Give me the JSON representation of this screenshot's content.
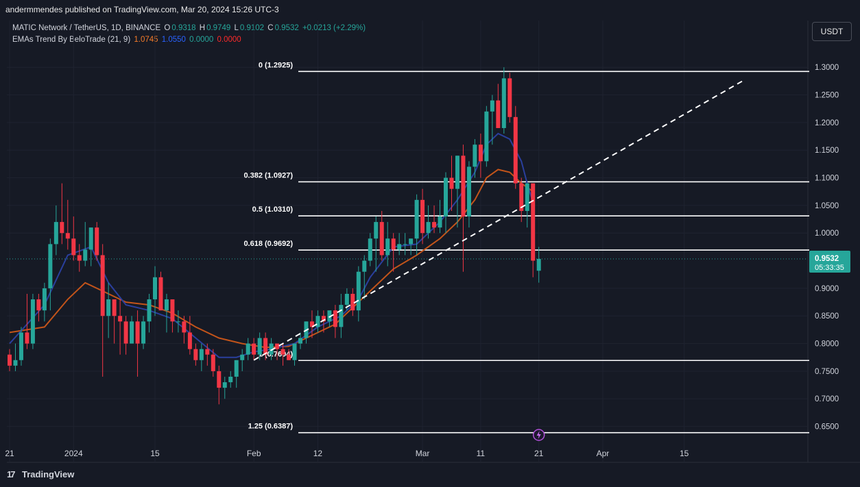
{
  "header": {
    "publish_line": "andermmendes published on TradingView.com, Mar 20, 2024 15:26 UTC-3"
  },
  "legend": {
    "symbol": "MATIC Network / TetherUS, 1D, BINANCE",
    "o_label": "O",
    "o_value": "0.9318",
    "h_label": "H",
    "h_value": "0.9749",
    "l_label": "L",
    "l_value": "0.9102",
    "c_label": "C",
    "c_value": "0.9532",
    "change": "+0.0213 (+2.29%)",
    "indicator": "EMAs Trend By BeloTrade (21, 9)",
    "ind_v1": "1.0745",
    "ind_v2": "1.0550",
    "ind_v3": "0.0000",
    "ind_v4": "0.0000"
  },
  "currency_button": "USDT",
  "price_badge": {
    "price": "0.9532",
    "countdown": "05:33:35"
  },
  "brand": {
    "logo": "17",
    "name": "TradingView"
  },
  "colors": {
    "bull": "#26a69a",
    "bear": "#f23645",
    "ema_fast": "#2a3f9d",
    "ema_slow": "#c3541a",
    "fib_line": "#ffffff",
    "background": "#161a25"
  },
  "chart_data": {
    "type": "candlestick",
    "ylim": [
      0.616,
      1.335
    ],
    "y_ticks": [
      1.3,
      1.25,
      1.2,
      1.15,
      1.1,
      1.05,
      1.0,
      0.9,
      0.85,
      0.8,
      0.75,
      0.7,
      0.65
    ],
    "y_tick_labels": [
      "1.3000",
      "1.2500",
      "1.2000",
      "1.1500",
      "1.1000",
      "1.0500",
      "1.0000",
      "0.9000",
      "0.8500",
      "0.8000",
      "0.7500",
      "0.7000",
      "0.6500"
    ],
    "x_ticks": [
      {
        "label": "21",
        "day": 0
      },
      {
        "label": "2024",
        "day": 11
      },
      {
        "label": "15",
        "day": 25
      },
      {
        "label": "Feb",
        "day": 42
      },
      {
        "label": "12",
        "day": 53
      },
      {
        "label": "Mar",
        "day": 71
      },
      {
        "label": "11",
        "day": 81
      },
      {
        "label": "21",
        "day": 91
      },
      {
        "label": "Apr",
        "day": 102
      },
      {
        "label": "15",
        "day": 116
      }
    ],
    "candles": [
      [
        0.78,
        0.79,
        0.75,
        0.76
      ],
      [
        0.76,
        0.8,
        0.75,
        0.77
      ],
      [
        0.77,
        0.83,
        0.76,
        0.82
      ],
      [
        0.82,
        0.89,
        0.79,
        0.8
      ],
      [
        0.8,
        0.89,
        0.79,
        0.88
      ],
      [
        0.88,
        0.89,
        0.84,
        0.86
      ],
      [
        0.86,
        0.91,
        0.84,
        0.9
      ],
      [
        0.9,
        0.99,
        0.86,
        0.98
      ],
      [
        0.98,
        1.05,
        0.96,
        1.02
      ],
      [
        1.02,
        1.09,
        0.98,
        1.0
      ],
      [
        1.0,
        1.06,
        0.97,
        0.99
      ],
      [
        0.99,
        1.03,
        0.95,
        0.96
      ],
      [
        0.96,
        0.98,
        0.93,
        0.95
      ],
      [
        0.95,
        1.02,
        0.94,
        0.97
      ],
      [
        0.97,
        1.01,
        0.94,
        1.01
      ],
      [
        1.01,
        1.02,
        0.95,
        0.96
      ],
      [
        0.96,
        0.98,
        0.74,
        0.85
      ],
      [
        0.85,
        0.91,
        0.81,
        0.88
      ],
      [
        0.88,
        0.88,
        0.8,
        0.85
      ],
      [
        0.85,
        0.88,
        0.78,
        0.84
      ],
      [
        0.84,
        0.85,
        0.78,
        0.8
      ],
      [
        0.8,
        0.85,
        0.8,
        0.84
      ],
      [
        0.84,
        0.86,
        0.74,
        0.8
      ],
      [
        0.8,
        0.85,
        0.79,
        0.84
      ],
      [
        0.84,
        0.89,
        0.82,
        0.88
      ],
      [
        0.88,
        0.94,
        0.85,
        0.92
      ],
      [
        0.92,
        0.93,
        0.86,
        0.86
      ],
      [
        0.86,
        0.89,
        0.82,
        0.88
      ],
      [
        0.88,
        0.88,
        0.82,
        0.84
      ],
      [
        0.84,
        0.86,
        0.82,
        0.84
      ],
      [
        0.84,
        0.85,
        0.8,
        0.82
      ],
      [
        0.82,
        0.85,
        0.78,
        0.79
      ],
      [
        0.79,
        0.8,
        0.76,
        0.77
      ],
      [
        0.77,
        0.8,
        0.75,
        0.79
      ],
      [
        0.79,
        0.8,
        0.76,
        0.78
      ],
      [
        0.78,
        0.79,
        0.74,
        0.75
      ],
      [
        0.75,
        0.76,
        0.69,
        0.72
      ],
      [
        0.72,
        0.74,
        0.7,
        0.73
      ],
      [
        0.73,
        0.75,
        0.72,
        0.74
      ],
      [
        0.74,
        0.77,
        0.72,
        0.77
      ],
      [
        0.77,
        0.79,
        0.75,
        0.78
      ],
      [
        0.78,
        0.81,
        0.77,
        0.8
      ],
      [
        0.8,
        0.81,
        0.77,
        0.78
      ],
      [
        0.78,
        0.82,
        0.77,
        0.81
      ],
      [
        0.81,
        0.82,
        0.77,
        0.78
      ],
      [
        0.78,
        0.81,
        0.77,
        0.8
      ],
      [
        0.8,
        0.8,
        0.77,
        0.79
      ],
      [
        0.79,
        0.8,
        0.76,
        0.78
      ],
      [
        0.78,
        0.79,
        0.77,
        0.77
      ],
      [
        0.77,
        0.8,
        0.76,
        0.8
      ],
      [
        0.8,
        0.82,
        0.79,
        0.81
      ],
      [
        0.81,
        0.84,
        0.8,
        0.84
      ],
      [
        0.84,
        0.86,
        0.81,
        0.83
      ],
      [
        0.83,
        0.86,
        0.82,
        0.85
      ],
      [
        0.85,
        0.86,
        0.82,
        0.84
      ],
      [
        0.84,
        0.86,
        0.83,
        0.86
      ],
      [
        0.86,
        0.87,
        0.81,
        0.83
      ],
      [
        0.83,
        0.89,
        0.81,
        0.87
      ],
      [
        0.87,
        0.9,
        0.86,
        0.89
      ],
      [
        0.89,
        0.9,
        0.85,
        0.86
      ],
      [
        0.86,
        0.94,
        0.84,
        0.93
      ],
      [
        0.93,
        0.96,
        0.88,
        0.95
      ],
      [
        0.95,
        1.0,
        0.94,
        0.99
      ],
      [
        0.99,
        1.03,
        0.93,
        1.02
      ],
      [
        1.02,
        1.04,
        0.95,
        0.96
      ],
      [
        0.96,
        1.02,
        0.94,
        0.99
      ],
      [
        0.99,
        1.0,
        0.93,
        0.97
      ],
      [
        0.97,
        1.0,
        0.96,
        0.98
      ],
      [
        0.98,
        1.0,
        0.96,
        0.98
      ],
      [
        0.98,
        0.99,
        0.96,
        0.99
      ],
      [
        0.99,
        1.07,
        0.96,
        1.06
      ],
      [
        1.06,
        1.08,
        0.98,
        1.0
      ],
      [
        1.0,
        1.05,
        0.99,
        1.02
      ],
      [
        1.02,
        1.05,
        1.0,
        1.01
      ],
      [
        1.01,
        1.06,
        1.0,
        1.03
      ],
      [
        1.03,
        1.11,
        1.0,
        1.1
      ],
      [
        1.1,
        1.14,
        1.04,
        1.08
      ],
      [
        1.08,
        1.14,
        1.01,
        1.14
      ],
      [
        1.14,
        1.16,
        0.93,
        1.03
      ],
      [
        1.03,
        1.13,
        1.01,
        1.12
      ],
      [
        1.12,
        1.17,
        1.1,
        1.16
      ],
      [
        1.16,
        1.18,
        1.1,
        1.13
      ],
      [
        1.13,
        1.23,
        1.12,
        1.22
      ],
      [
        1.22,
        1.25,
        1.16,
        1.24
      ],
      [
        1.24,
        1.27,
        1.19,
        1.19
      ],
      [
        1.19,
        1.3,
        1.18,
        1.28
      ],
      [
        1.28,
        1.29,
        1.2,
        1.21
      ],
      [
        1.21,
        1.23,
        1.08,
        1.09
      ],
      [
        1.09,
        1.1,
        1.02,
        1.04
      ],
      [
        1.04,
        1.09,
        1.01,
        1.09
      ],
      [
        1.09,
        1.09,
        0.92,
        0.95
      ],
      [
        0.9318,
        0.9749,
        0.9102,
        0.9532
      ]
    ],
    "ema_fast_points": [
      [
        0,
        0.8
      ],
      [
        6,
        0.87
      ],
      [
        10,
        0.96
      ],
      [
        14,
        0.975
      ],
      [
        17,
        0.91
      ],
      [
        20,
        0.87
      ],
      [
        24,
        0.86
      ],
      [
        28,
        0.845
      ],
      [
        32,
        0.81
      ],
      [
        36,
        0.775
      ],
      [
        39,
        0.775
      ],
      [
        42,
        0.785
      ],
      [
        45,
        0.79
      ],
      [
        49,
        0.8
      ],
      [
        53,
        0.83
      ],
      [
        57,
        0.85
      ],
      [
        60,
        0.88
      ],
      [
        62,
        0.92
      ],
      [
        66,
        0.975
      ],
      [
        70,
        0.98
      ],
      [
        74,
        1.02
      ],
      [
        77,
        1.06
      ],
      [
        80,
        1.11
      ],
      [
        82,
        1.16
      ],
      [
        84,
        1.18
      ],
      [
        86,
        1.17
      ],
      [
        88,
        1.13
      ],
      [
        89,
        1.09
      ],
      [
        90,
        1.055
      ]
    ],
    "ema_slow_points": [
      [
        0,
        0.82
      ],
      [
        6,
        0.83
      ],
      [
        10,
        0.88
      ],
      [
        13,
        0.91
      ],
      [
        16,
        0.895
      ],
      [
        20,
        0.875
      ],
      [
        24,
        0.87
      ],
      [
        28,
        0.855
      ],
      [
        32,
        0.83
      ],
      [
        36,
        0.81
      ],
      [
        40,
        0.8
      ],
      [
        44,
        0.793
      ],
      [
        48,
        0.795
      ],
      [
        52,
        0.815
      ],
      [
        56,
        0.835
      ],
      [
        59,
        0.865
      ],
      [
        62,
        0.895
      ],
      [
        66,
        0.935
      ],
      [
        70,
        0.96
      ],
      [
        74,
        0.99
      ],
      [
        77,
        1.02
      ],
      [
        80,
        1.06
      ],
      [
        82,
        1.1
      ],
      [
        84,
        1.115
      ],
      [
        86,
        1.11
      ],
      [
        88,
        1.09
      ],
      [
        90,
        1.075
      ]
    ],
    "trendline": {
      "from": [
        42,
        0.77
      ],
      "to": [
        126,
        1.275
      ]
    },
    "fib_levels": [
      {
        "ratio": "0",
        "price": 1.2925,
        "label": "0 (1.2925)"
      },
      {
        "ratio": "0.382",
        "price": 1.0927,
        "label": "0.382 (1.0927)"
      },
      {
        "ratio": "0.5",
        "price": 1.031,
        "label": "0.5 (1.0310)"
      },
      {
        "ratio": "0.618",
        "price": 0.9692,
        "label": "0.618 (0.9692)"
      },
      {
        "ratio": "1",
        "price": 0.7694,
        "label": "1 (0.7694)"
      },
      {
        "ratio": "1.25",
        "price": 0.6387,
        "label": "1.25 (0.6387)"
      }
    ],
    "current_price": 0.9532
  }
}
